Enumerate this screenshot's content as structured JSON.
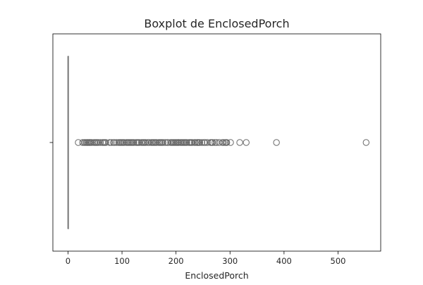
{
  "chart_data": {
    "type": "boxplot",
    "orientation": "horizontal",
    "title": "Boxplot de EnclosedPorch",
    "xlabel": "EnclosedPorch",
    "ylabel": "",
    "xlim": [
      -28,
      579
    ],
    "x_ticks": [
      0,
      100,
      200,
      300,
      400,
      500
    ],
    "grid": false,
    "box": {
      "min": 0,
      "q1": 0,
      "median": 0,
      "q3": 0,
      "max": 0
    },
    "outliers": [
      19,
      27,
      30,
      32,
      34,
      36,
      37,
      39,
      40,
      42,
      44,
      48,
      50,
      52,
      54,
      56,
      60,
      64,
      66,
      68,
      70,
      77,
      80,
      84,
      86,
      90,
      94,
      96,
      98,
      100,
      102,
      104,
      108,
      110,
      112,
      114,
      116,
      118,
      120,
      122,
      126,
      128,
      130,
      132,
      136,
      138,
      140,
      142,
      144,
      148,
      150,
      154,
      156,
      158,
      160,
      162,
      164,
      168,
      170,
      172,
      174,
      176,
      180,
      184,
      185,
      190,
      192,
      194,
      196,
      198,
      200,
      202,
      204,
      205,
      208,
      210,
      212,
      214,
      216,
      218,
      220,
      224,
      226,
      228,
      230,
      234,
      236,
      239,
      240,
      242,
      244,
      248,
      252,
      254,
      258,
      264,
      266,
      268,
      272,
      275,
      280,
      286,
      288,
      291,
      293,
      294,
      301,
      318,
      330,
      386,
      552
    ],
    "colors": {
      "box": "#808080",
      "outlier_edge": "#696969",
      "axes": "#000000",
      "text": "#262626"
    }
  }
}
